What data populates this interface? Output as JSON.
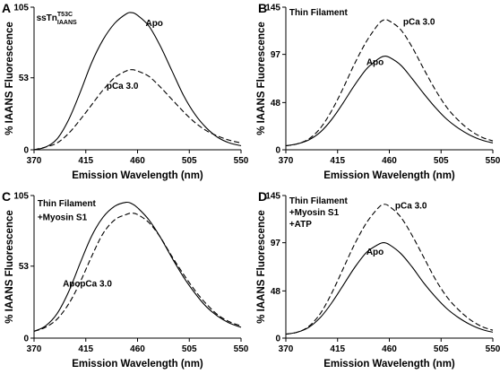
{
  "chart_data": [
    {
      "panel": "A",
      "type": "line",
      "xlabel": "Emission Wavelength (nm)",
      "ylabel": "% IAANS Fluorescence",
      "xlim": [
        370,
        550
      ],
      "ylim": [
        0,
        105
      ],
      "xticks": [
        "370",
        "415",
        "460",
        "505",
        "550"
      ],
      "yticks": [
        "0",
        "53",
        "105"
      ],
      "grid": false,
      "annotations": [
        {
          "text": "ssTn",
          "sup": "T53C",
          "sub": "IAANS",
          "x": 372,
          "y": 95
        },
        {
          "text": "Apo",
          "x": 467,
          "y": 91
        },
        {
          "text": "pCa 3.0",
          "x": 433,
          "y": 45
        }
      ],
      "series": [
        {
          "label": "Apo",
          "style": "solid",
          "x": [
            370,
            380,
            390,
            400,
            410,
            420,
            430,
            440,
            450,
            455,
            460,
            470,
            480,
            490,
            500,
            510,
            520,
            530,
            540,
            550
          ],
          "y": [
            0,
            2,
            8,
            22,
            42,
            64,
            81,
            93,
            100,
            101,
            99,
            91,
            76,
            58,
            40,
            26,
            16,
            9,
            5,
            3
          ]
        },
        {
          "label": "pCa 3.0",
          "style": "dashed",
          "x": [
            370,
            380,
            390,
            400,
            410,
            420,
            430,
            440,
            450,
            455,
            460,
            470,
            480,
            490,
            500,
            510,
            520,
            530,
            540,
            550
          ],
          "y": [
            0,
            2,
            5,
            12,
            22,
            33,
            44,
            53,
            58,
            59,
            58,
            54,
            46,
            37,
            28,
            20,
            14,
            10,
            7,
            5
          ]
        }
      ]
    },
    {
      "panel": "B",
      "type": "line",
      "xlabel": "Emission Wavelength (nm)",
      "ylabel": "% IAANS Fluorescence",
      "xlim": [
        370,
        550
      ],
      "ylim": [
        0,
        145
      ],
      "xticks": [
        "370",
        "415",
        "460",
        "505",
        "550"
      ],
      "yticks": [
        "0",
        "48",
        "97",
        "145"
      ],
      "grid": false,
      "annotations": [
        {
          "text": "Thin Filament",
          "x": 373,
          "y": 137
        },
        {
          "text": "pCa 3.0",
          "x": 472,
          "y": 127
        },
        {
          "text": "Apo",
          "x": 440,
          "y": 86
        }
      ],
      "series": [
        {
          "label": "Apo",
          "style": "solid",
          "x": [
            370,
            380,
            390,
            400,
            410,
            420,
            430,
            440,
            450,
            455,
            460,
            470,
            480,
            490,
            500,
            510,
            520,
            530,
            540,
            550
          ],
          "y": [
            4,
            6,
            10,
            18,
            31,
            48,
            66,
            82,
            92,
            95,
            94,
            86,
            72,
            57,
            43,
            31,
            22,
            15,
            10,
            7
          ]
        },
        {
          "label": "pCa 3.0",
          "style": "dashed",
          "x": [
            370,
            380,
            390,
            400,
            410,
            420,
            430,
            440,
            450,
            455,
            460,
            470,
            480,
            490,
            500,
            510,
            520,
            530,
            540,
            550
          ],
          "y": [
            4,
            6,
            11,
            22,
            40,
            63,
            88,
            110,
            127,
            132,
            131,
            122,
            104,
            82,
            61,
            43,
            30,
            20,
            13,
            9
          ]
        }
      ]
    },
    {
      "panel": "C",
      "type": "line",
      "xlabel": "Emission Wavelength (nm)",
      "ylabel": "% IAANS Fluorescence",
      "xlim": [
        370,
        550
      ],
      "ylim": [
        0,
        105
      ],
      "xticks": [
        "370",
        "415",
        "460",
        "505",
        "550"
      ],
      "yticks": [
        "0",
        "53",
        "105"
      ],
      "grid": false,
      "annotations": [
        {
          "text": "Thin Filament",
          "x": 373,
          "y": 97
        },
        {
          "text": "+Myosin S1",
          "x": 373,
          "y": 87
        },
        {
          "text": "Apo",
          "x": 395,
          "y": 38
        },
        {
          "text": "pCa 3.0",
          "x": 410,
          "y": 38
        }
      ],
      "series": [
        {
          "label": "Apo",
          "style": "solid",
          "x": [
            370,
            380,
            390,
            400,
            410,
            420,
            430,
            440,
            450,
            455,
            460,
            470,
            480,
            490,
            500,
            510,
            520,
            530,
            540,
            550
          ],
          "y": [
            5,
            9,
            18,
            34,
            55,
            75,
            89,
            97,
            100,
            99,
            96,
            87,
            74,
            59,
            45,
            33,
            23,
            16,
            11,
            8
          ]
        },
        {
          "label": "pCa 3.0",
          "style": "dashed",
          "x": [
            370,
            380,
            390,
            400,
            410,
            420,
            430,
            440,
            450,
            455,
            460,
            470,
            480,
            490,
            500,
            510,
            520,
            530,
            540,
            550
          ],
          "y": [
            5,
            8,
            14,
            25,
            41,
            60,
            77,
            87,
            91,
            92,
            91,
            85,
            74,
            60,
            47,
            35,
            25,
            17,
            12,
            9
          ]
        }
      ]
    },
    {
      "panel": "D",
      "type": "line",
      "xlabel": "Emission Wavelength (nm)",
      "ylabel": "% IAANS Fluorescence",
      "xlim": [
        370,
        550
      ],
      "ylim": [
        0,
        145
      ],
      "xticks": [
        "370",
        "415",
        "460",
        "505",
        "550"
      ],
      "yticks": [
        "0",
        "48",
        "97",
        "145"
      ],
      "grid": false,
      "annotations": [
        {
          "text": "Thin Filament",
          "x": 373,
          "y": 137
        },
        {
          "text": "+Myosin S1",
          "x": 373,
          "y": 125
        },
        {
          "text": "+ATP",
          "x": 373,
          "y": 113
        },
        {
          "text": "pCa 3.0",
          "x": 465,
          "y": 132
        },
        {
          "text": "Apo",
          "x": 440,
          "y": 85
        }
      ],
      "series": [
        {
          "label": "Apo",
          "style": "solid",
          "x": [
            370,
            380,
            390,
            400,
            410,
            420,
            430,
            440,
            450,
            455,
            460,
            470,
            480,
            490,
            500,
            510,
            520,
            530,
            540,
            550
          ],
          "y": [
            4,
            6,
            11,
            21,
            36,
            54,
            72,
            87,
            95,
            97,
            95,
            86,
            72,
            56,
            42,
            30,
            21,
            14,
            9,
            6
          ]
        },
        {
          "label": "pCa 3.0",
          "style": "dashed",
          "x": [
            370,
            380,
            390,
            400,
            410,
            420,
            430,
            440,
            450,
            455,
            460,
            470,
            480,
            490,
            500,
            510,
            520,
            530,
            540,
            550
          ],
          "y": [
            4,
            6,
            12,
            25,
            46,
            71,
            96,
            117,
            132,
            136,
            134,
            123,
            104,
            82,
            60,
            42,
            29,
            19,
            12,
            8
          ]
        }
      ]
    }
  ]
}
